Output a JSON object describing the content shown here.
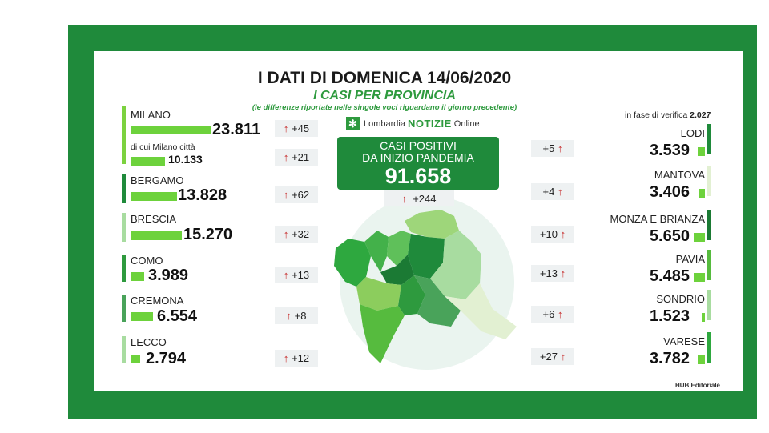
{
  "header": {
    "title": "I DATI DI DOMENICA 14/06/2020",
    "subtitle": "I CASI PER PROVINCIA",
    "note": "(le differenze riportate nelle singole voci riguardano il giorno precedente)"
  },
  "logo": {
    "brand_a": "Lombardia",
    "brand_b": "NOTIZIE",
    "brand_c": "Online"
  },
  "main": {
    "line1": "CASI POSITIVI",
    "line2": "DA INIZIO PANDEMIA",
    "total": "91.658",
    "delta": "+244"
  },
  "verifica": {
    "label": "in fase di verifica",
    "value": "2.027"
  },
  "footer": {
    "credit": "HUB Editoriale"
  },
  "colors": {
    "frame": "#1f8a3b",
    "bar": "#6dd23c",
    "arrow": "#c62828"
  },
  "chart_data": {
    "type": "bar",
    "title": "I CASI PER PROVINCIA",
    "categories": [
      "MILANO",
      "BERGAMO",
      "BRESCIA",
      "COMO",
      "CREMONA",
      "LECCO",
      "LODI",
      "MANTOVA",
      "MONZA E BRIANZA",
      "PAVIA",
      "SONDRIO",
      "VARESE"
    ],
    "values": [
      23811,
      13828,
      15270,
      3989,
      6554,
      2794,
      3539,
      3406,
      5650,
      5485,
      1523,
      3782
    ],
    "left": [
      {
        "name": "MILANO",
        "value": 23811,
        "display": "23.811",
        "delta": "+45"
      },
      {
        "name": "BERGAMO",
        "value": 13828,
        "display": "13.828",
        "delta": "+62"
      },
      {
        "name": "BRESCIA",
        "value": 15270,
        "display": "15.270",
        "delta": "+32"
      },
      {
        "name": "COMO",
        "value": 3989,
        "display": "3.989",
        "delta": "+13"
      },
      {
        "name": "CREMONA",
        "value": 6554,
        "display": "6.554",
        "delta": "+8"
      },
      {
        "name": "LECCO",
        "value": 2794,
        "display": "2.794",
        "delta": "+12"
      }
    ],
    "milano_city": {
      "label": "di cui Milano città",
      "value": 10133,
      "display": "10.133",
      "delta": "+21"
    },
    "right": [
      {
        "name": "LODI",
        "value": 3539,
        "display": "3.539",
        "delta": "+5"
      },
      {
        "name": "MANTOVA",
        "value": 3406,
        "display": "3.406",
        "delta": "+4"
      },
      {
        "name": "MONZA E BRIANZA",
        "value": 5650,
        "display": "5.650",
        "delta": "+10"
      },
      {
        "name": "PAVIA",
        "value": 5485,
        "display": "5.485",
        "delta": "+13"
      },
      {
        "name": "SONDRIO",
        "value": 1523,
        "display": "1.523",
        "delta": "+6"
      },
      {
        "name": "VARESE",
        "value": 3782,
        "display": "3.782",
        "delta": "+27"
      }
    ]
  }
}
